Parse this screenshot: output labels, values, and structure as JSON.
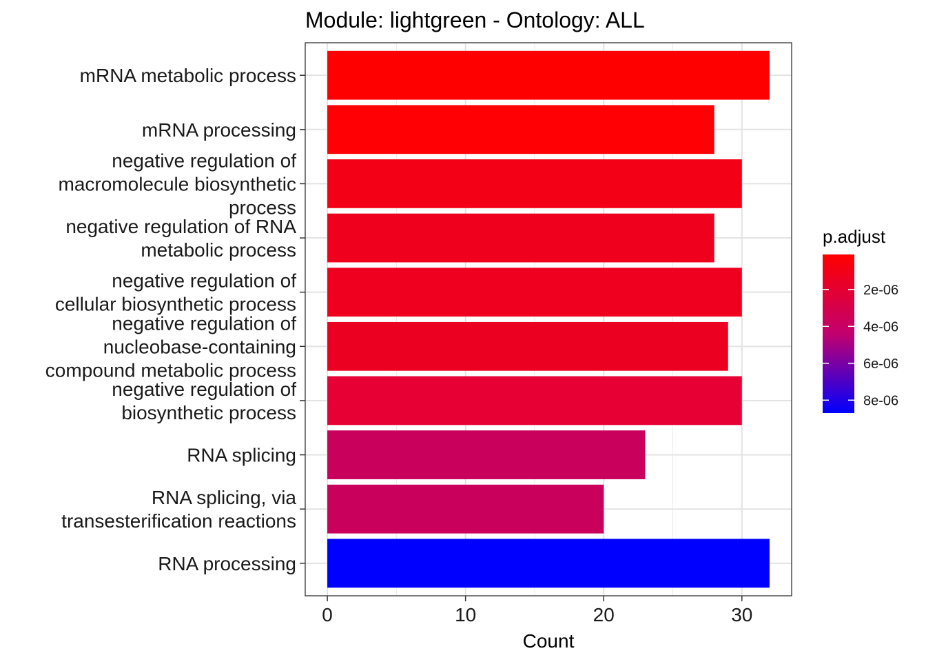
{
  "chart_data": {
    "type": "bar",
    "orientation": "horizontal",
    "title": "Module: lightgreen - Ontology: ALL",
    "xlabel": "Count",
    "ylabel": "",
    "xlim": [
      -1.6,
      33.6
    ],
    "xticks": [
      0,
      10,
      20,
      30
    ],
    "grid": true,
    "categories": [
      [
        "mRNA metabolic process"
      ],
      [
        "mRNA processing"
      ],
      [
        "negative regulation of",
        "macromolecule biosynthetic",
        "process"
      ],
      [
        "negative regulation of RNA",
        "metabolic process"
      ],
      [
        "negative regulation of",
        "cellular biosynthetic process"
      ],
      [
        "negative regulation of",
        "nucleobase-containing",
        "compound metabolic process"
      ],
      [
        "negative regulation of",
        "biosynthetic process"
      ],
      [
        "RNA splicing"
      ],
      [
        "RNA splicing, via",
        "transesterification reactions"
      ],
      [
        "RNA processing"
      ]
    ],
    "values": [
      32,
      28,
      30,
      28,
      30,
      29,
      30,
      23,
      20,
      32
    ],
    "bar_colors": [
      "#FF0000",
      "#FF0005",
      "#F30016",
      "#EF001C",
      "#EE001E",
      "#EC0021",
      "#E60034",
      "#C9005C",
      "#C9005C",
      "#0000FF"
    ],
    "legend": {
      "title": "p.adjust",
      "placement": "right",
      "ticks": [
        "2e-06",
        "4e-06",
        "6e-06",
        "8e-06"
      ],
      "tick_values": [
        2e-06,
        4e-06,
        6e-06,
        8e-06
      ],
      "range": [
        1e-07,
        8.7e-06
      ],
      "low_color": "#FF0000",
      "high_color": "#0000FF"
    }
  }
}
